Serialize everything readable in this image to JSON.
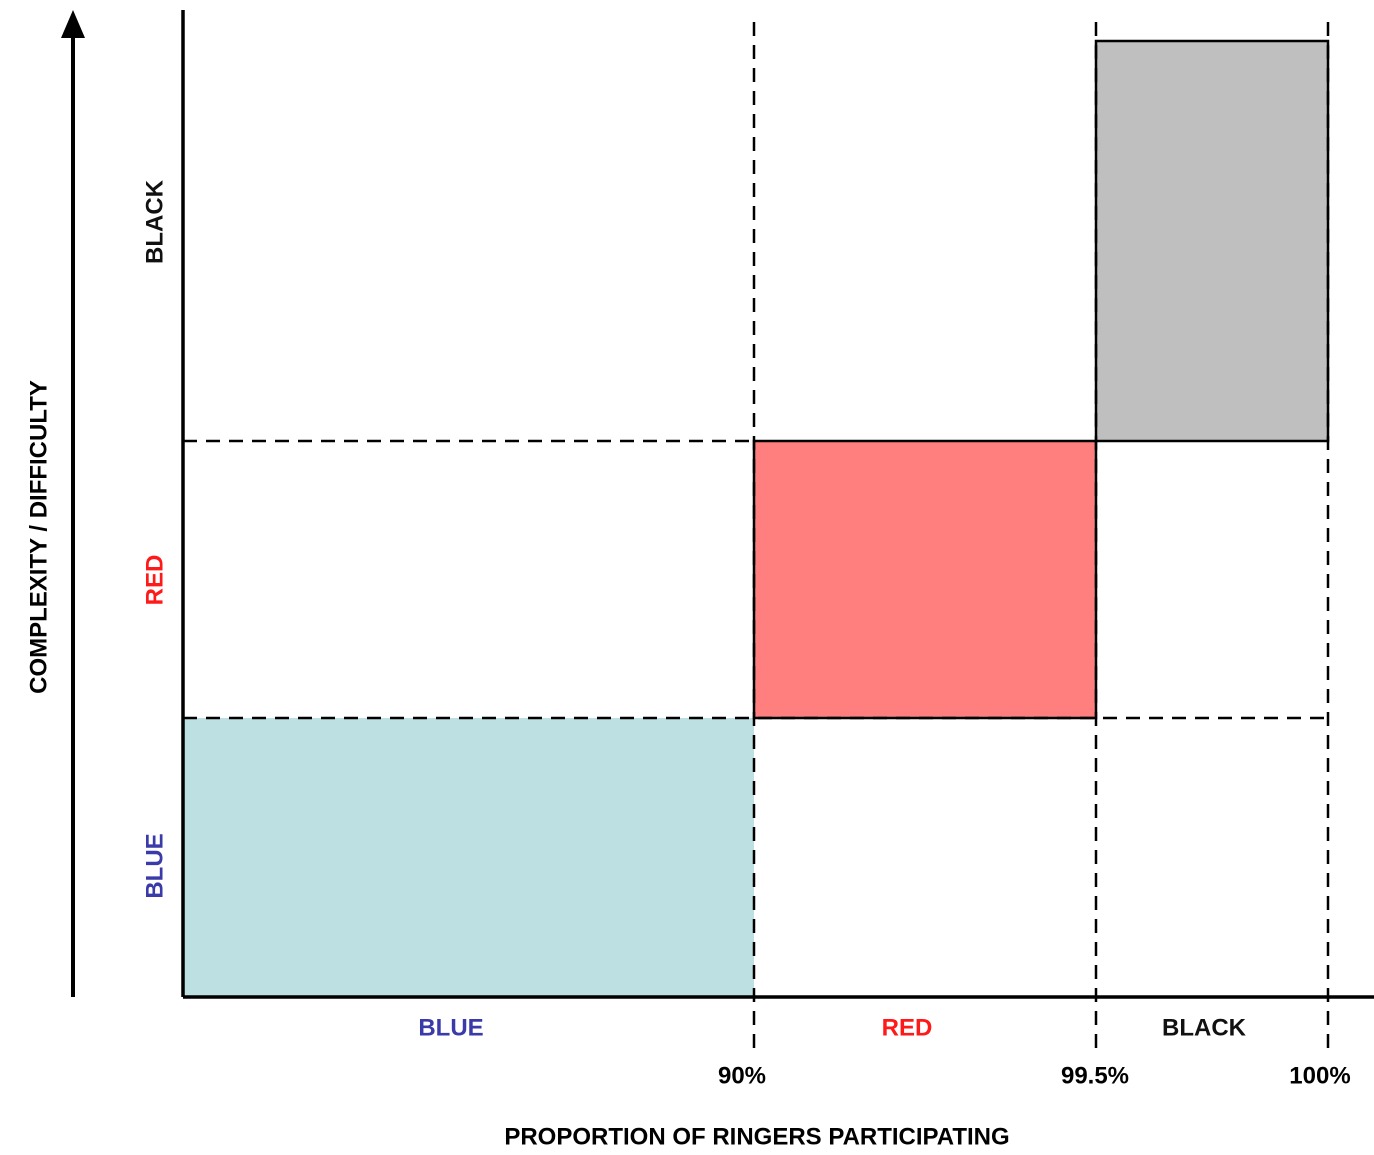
{
  "diagram": {
    "y_axis_label": "COMPLEXITY / DIFFICULTY",
    "x_axis_label": "PROPORTION OF RINGERS PARTICIPATING",
    "levels": [
      {
        "name": "BLUE",
        "color": "#3a3aa8",
        "fill": "#bde0e3"
      },
      {
        "name": "RED",
        "color": "#ff1a1a",
        "fill": "#ff7f7f"
      },
      {
        "name": "BLACK",
        "color": "#111111",
        "fill": "#bfbfbf"
      }
    ],
    "ticks": [
      "90%",
      "99.5%",
      "100%"
    ]
  }
}
